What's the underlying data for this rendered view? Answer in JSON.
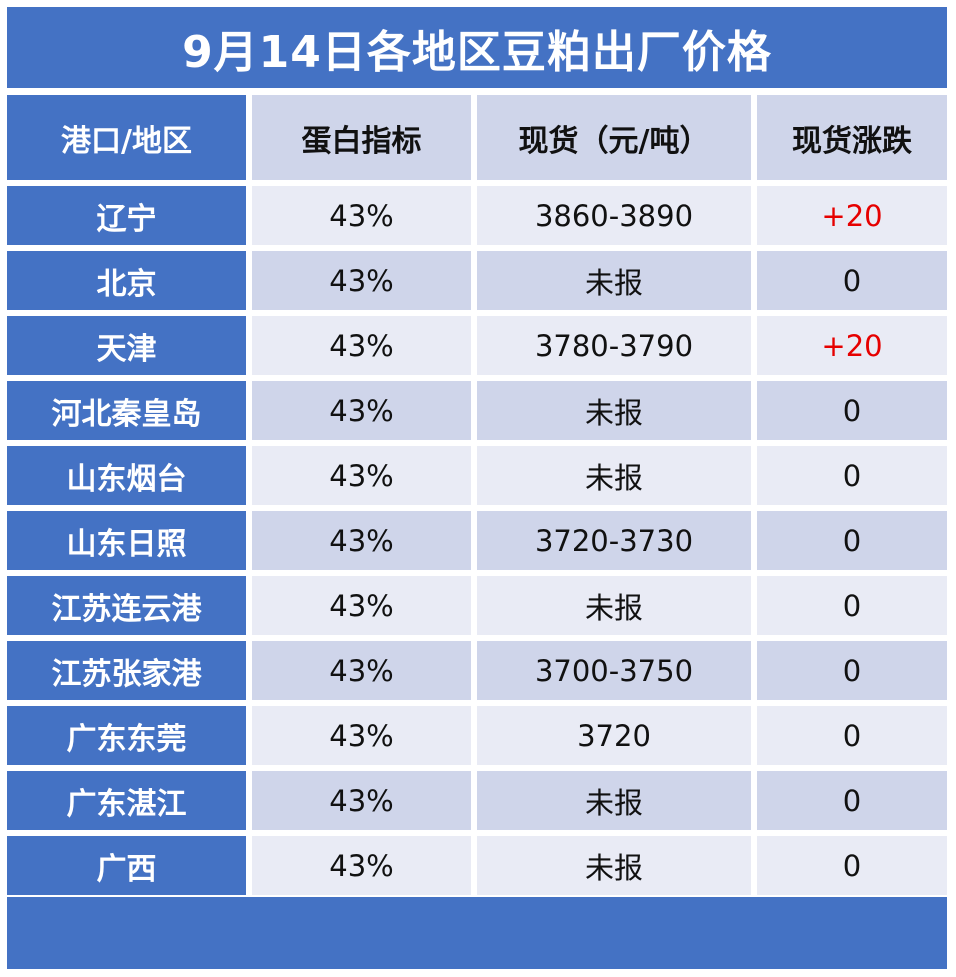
{
  "title": "9月14日各地区豆粕出厂价格",
  "header": [
    "港口/地区",
    "蛋白指标",
    "现货（元/吨）",
    "现货涨跌"
  ],
  "rows": [
    {
      "region": "辽宁",
      "protein": "43%",
      "price": "3860-3890",
      "change": "+20"
    },
    {
      "region": "北京",
      "protein": "43%",
      "price": "未报",
      "change": "0"
    },
    {
      "region": "天津",
      "protein": "43%",
      "price": "3780-3790",
      "change": "+20"
    },
    {
      "region": "河北秦皇岛",
      "protein": "43%",
      "price": "未报",
      "change": "0"
    },
    {
      "region": "山东烟台",
      "protein": "43%",
      "price": "未报",
      "change": "0"
    },
    {
      "region": "山东日照",
      "protein": "43%",
      "price": "3720-3730",
      "change": "0"
    },
    {
      "region": "江苏连云港",
      "protein": "43%",
      "price": "未报",
      "change": "0"
    },
    {
      "region": "江苏张家港",
      "protein": "43%",
      "price": "3700-3750",
      "change": "0"
    },
    {
      "region": "广东东莞",
      "protein": "43%",
      "price": "3720",
      "change": "0"
    },
    {
      "region": "广东湛江",
      "protein": "43%",
      "price": "未报",
      "change": "0"
    },
    {
      "region": "广西",
      "protein": "43%",
      "price": "未报",
      "change": "0"
    }
  ],
  "colors": {
    "primary": "#4472c4",
    "row_light": "#e9ebf5",
    "row_dark": "#cfd5ea",
    "increase": "#e60000"
  }
}
